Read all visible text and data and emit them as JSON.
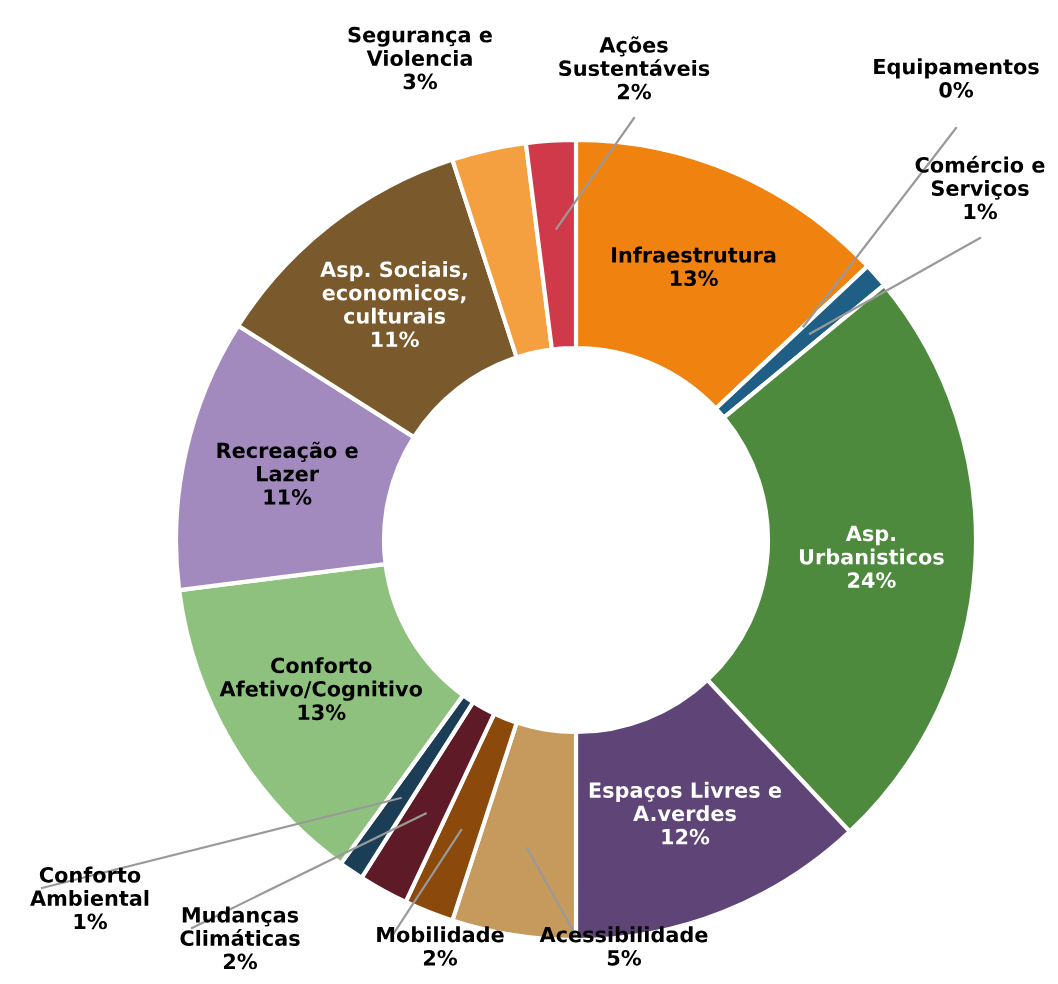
{
  "chart_data": {
    "type": "donut",
    "categories": [
      "Infraestrutura",
      "Equipamentos",
      "Comércio e\nServiços",
      "Asp.\nUrbanisticos",
      "Espaços Livres e\nA.verdes",
      "Acessibilidade",
      "Mobilidade",
      "Mudanças\nClimáticas",
      "Conforto\nAmbiental",
      "Conforto\nAfetivo/Cognitivo",
      "Recreação e\nLazer",
      "Asp. Sociais,\neconomicos,\nculturais",
      "Segurança e\nViolencia",
      "Ações\nSustentáveis"
    ],
    "values": [
      13,
      0,
      1,
      24,
      12,
      5,
      2,
      2,
      1,
      13,
      11,
      11,
      3,
      2
    ],
    "colors": [
      "#f0820f",
      "#c83c46",
      "#1f5f86",
      "#4e8a3e",
      "#5e4477",
      "#c69a5c",
      "#8b4a0b",
      "#5e1a26",
      "#1b3d55",
      "#8fc17e",
      "#a28abf",
      "#7a5a2c",
      "#f5a040",
      "#d0394a"
    ],
    "value_labels": [
      "13%",
      "0%",
      "1%",
      "24%",
      "12%",
      "5%",
      "2%",
      "2%",
      "1%",
      "13%",
      "11%",
      "11%",
      "3%",
      "2%"
    ],
    "legend": false
  }
}
